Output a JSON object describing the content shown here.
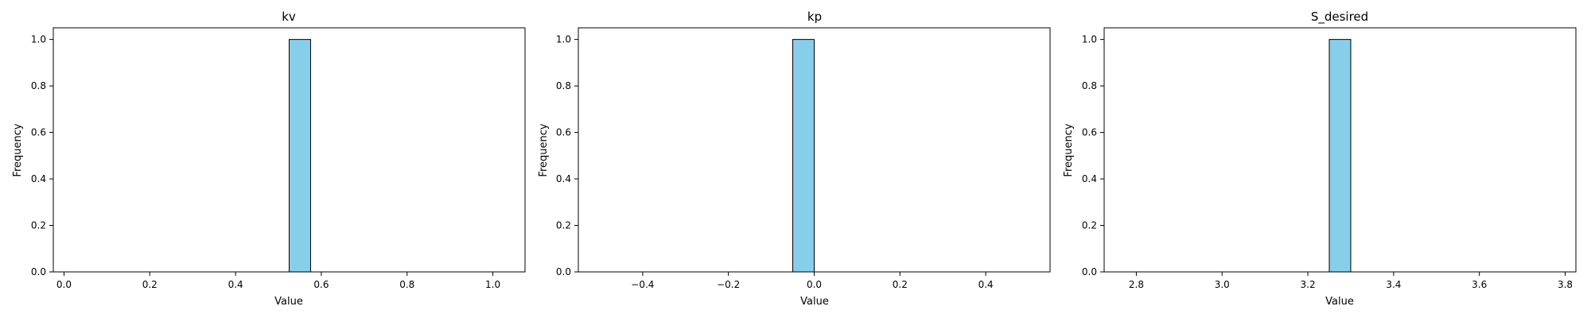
{
  "chart_data": [
    {
      "type": "bar",
      "title": "kv",
      "xlabel": "Value",
      "ylabel": "Frequency",
      "xlim": [
        -0.025,
        1.075
      ],
      "ylim": [
        0,
        1.05
      ],
      "xticks": [
        "0.0",
        "0.2",
        "0.4",
        "0.6",
        "0.8",
        "1.0"
      ],
      "yticks": [
        "0.0",
        "0.2",
        "0.4",
        "0.6",
        "0.8",
        "1.0"
      ],
      "bins": [
        [
          0.525,
          0.575,
          1
        ]
      ],
      "bar_color": "#87CEEB",
      "edge_color": "#000000",
      "grid": false
    },
    {
      "type": "bar",
      "title": "kp",
      "xlabel": "Value",
      "ylabel": "Frequency",
      "xlim": [
        -0.55,
        0.55
      ],
      "ylim": [
        0,
        1.05
      ],
      "xticks": [
        "−0.4",
        "−0.2",
        "0.0",
        "0.2",
        "0.4"
      ],
      "yticks": [
        "0.0",
        "0.2",
        "0.4",
        "0.6",
        "0.8",
        "1.0"
      ],
      "bins": [
        [
          -0.05,
          0.0,
          1
        ]
      ],
      "bar_color": "#87CEEB",
      "edge_color": "#000000",
      "grid": false
    },
    {
      "type": "bar",
      "title": "S_desired",
      "xlabel": "Value",
      "ylabel": "Frequency",
      "xlim": [
        2.725,
        3.825
      ],
      "ylim": [
        0,
        1.05
      ],
      "xticks": [
        "2.8",
        "3.0",
        "3.2",
        "3.4",
        "3.6",
        "3.8"
      ],
      "yticks": [
        "0.0",
        "0.2",
        "0.4",
        "0.6",
        "0.8",
        "1.0"
      ],
      "bins": [
        [
          3.25,
          3.3,
          1
        ]
      ],
      "bar_color": "#87CEEB",
      "edge_color": "#000000",
      "grid": false
    }
  ]
}
